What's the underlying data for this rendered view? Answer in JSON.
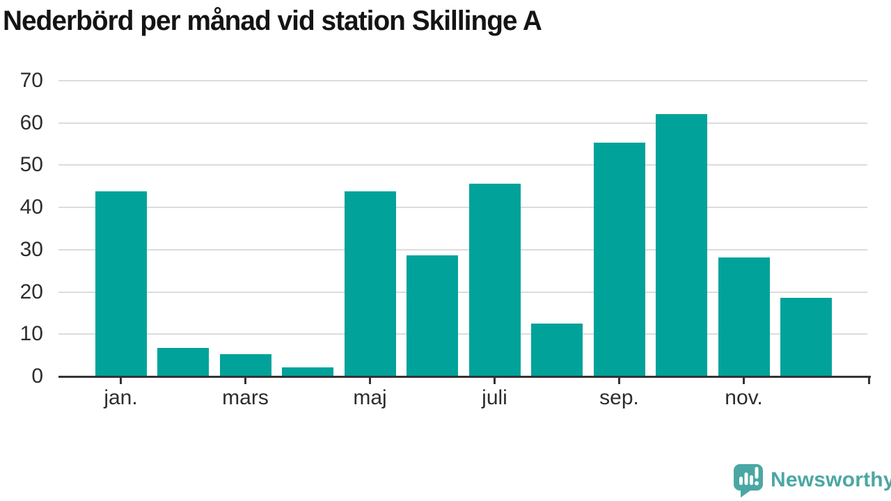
{
  "title": "Nederbörd per månad vid station Skillinge A",
  "chart_data": {
    "type": "bar",
    "title": "Nederbörd per månad vid station Skillinge A",
    "n_bars": 12,
    "values": [
      43.8,
      6.7,
      5.3,
      2.1,
      43.8,
      28.6,
      45.6,
      12.6,
      55.4,
      62.1,
      28.2,
      18.6
    ],
    "x_ticks": [
      {
        "index": 0,
        "label": "jan."
      },
      {
        "index": 2,
        "label": "mars"
      },
      {
        "index": 4,
        "label": "maj"
      },
      {
        "index": 6,
        "label": "juli"
      },
      {
        "index": 8,
        "label": "sep."
      },
      {
        "index": 10,
        "label": "nov."
      }
    ],
    "y_ticks": [
      0,
      10,
      20,
      30,
      40,
      50,
      60,
      70
    ],
    "ylim": [
      0,
      70
    ],
    "xlabel": "",
    "ylabel": "",
    "grid": "horizontal-only",
    "legend": "none"
  },
  "branding": {
    "name": "Newsworthy",
    "icon": "newsworthy-speech-bubble-barchart-icon"
  },
  "colors": {
    "background": "#ffffff",
    "bar": "#00a29a",
    "gridline": "#dcdcdc",
    "axis": "#333333",
    "tick_label": "#2d2d2d",
    "title": "#141414",
    "brand": "#4ba7a3"
  }
}
